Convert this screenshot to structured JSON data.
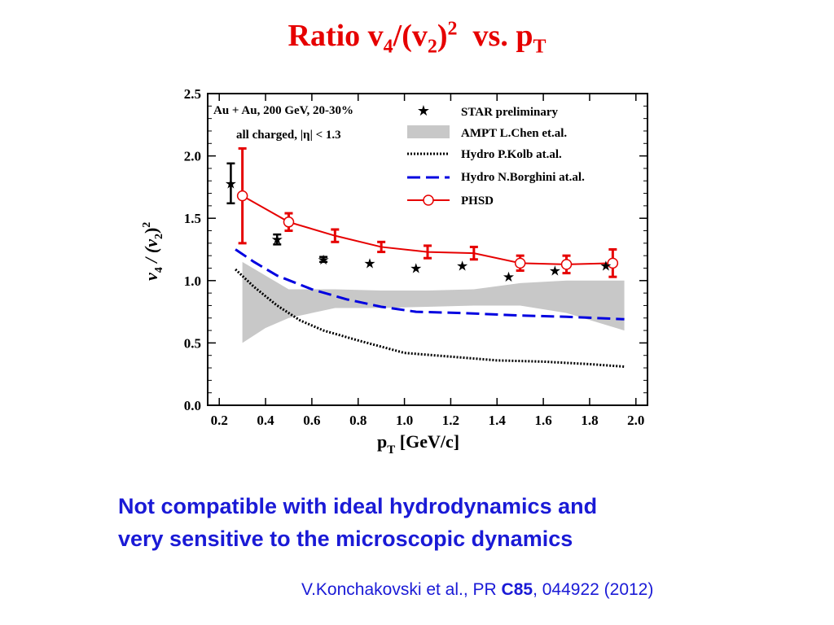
{
  "slide": {
    "title_main": "Ratio v",
    "title_sub1": "4",
    "title_mid": "/(v",
    "title_sub2": "2",
    "title_close": ")",
    "title_sup": "2",
    "title_vs": "  vs. p",
    "title_sub3": "T",
    "note_line1": "Not compatible with ideal hydrodynamics and",
    "note_line2": "very sensitive to the microscopic dynamics",
    "cite_pre": "V.Konchakovski et al., PR ",
    "cite_bold": "C85",
    "cite_post": ", 044922 (2012)"
  },
  "colors": {
    "title": "#e60000",
    "note": "#1a1ad6",
    "phsd": "#e60000",
    "borghini": "#0000e0",
    "ampt_band": "#c8c8c8",
    "star": "#000000"
  },
  "chart_data": {
    "type": "line",
    "xlabel": "p",
    "xlabel_sub": "T",
    "xlabel_unit": " [GeV/c]",
    "ylabel": "v",
    "ylabel_sub": "4",
    "ylabel_mid": " / (v",
    "ylabel_sub2": "2",
    "ylabel_close": ")",
    "ylabel_sup": "2",
    "xlim": [
      0.15,
      2.05
    ],
    "ylim": [
      0.0,
      2.5
    ],
    "xticks": [
      0.2,
      0.4,
      0.6,
      0.8,
      1.0,
      1.2,
      1.4,
      1.6,
      1.8,
      2.0
    ],
    "xtick_labels": [
      "0.2",
      "0.4",
      "0.6",
      "0.8",
      "1.0",
      "1.2",
      "1.4",
      "1.6",
      "1.8",
      "2.0"
    ],
    "yticks": [
      0.0,
      0.5,
      1.0,
      1.5,
      2.0,
      2.5
    ],
    "ytick_labels": [
      "0.0",
      "0.5",
      "1.0",
      "1.5",
      "2.0",
      "2.5"
    ],
    "annotation_line1": "Au + Au, 200 GeV, 20-30%",
    "annotation_line2": "all charged, |η| < 1.3",
    "legend_position": "top-right",
    "series": [
      {
        "name": "STAR preliminary",
        "kind": "stars",
        "points": [
          {
            "x": 0.25,
            "y": 1.78,
            "err": 0.16
          },
          {
            "x": 0.45,
            "y": 1.33,
            "err": 0.04
          },
          {
            "x": 0.65,
            "y": 1.17,
            "err": 0.02
          },
          {
            "x": 0.85,
            "y": 1.14,
            "err": 0
          },
          {
            "x": 1.05,
            "y": 1.1,
            "err": 0
          },
          {
            "x": 1.25,
            "y": 1.12,
            "err": 0
          },
          {
            "x": 1.45,
            "y": 1.03,
            "err": 0
          },
          {
            "x": 1.65,
            "y": 1.08,
            "err": 0
          },
          {
            "x": 1.87,
            "y": 1.12,
            "err": 0
          }
        ]
      },
      {
        "name": "AMPT L.Chen et.al.",
        "kind": "band",
        "upper": [
          [
            0.3,
            1.15
          ],
          [
            0.5,
            0.93
          ],
          [
            0.7,
            0.93
          ],
          [
            0.9,
            0.92
          ],
          [
            1.1,
            0.92
          ],
          [
            1.3,
            0.93
          ],
          [
            1.5,
            0.98
          ],
          [
            1.7,
            1.0
          ],
          [
            1.9,
            1.0
          ],
          [
            1.95,
            1.0
          ]
        ],
        "lower": [
          [
            0.3,
            0.5
          ],
          [
            0.4,
            0.62
          ],
          [
            0.5,
            0.7
          ],
          [
            0.7,
            0.78
          ],
          [
            0.9,
            0.78
          ],
          [
            1.1,
            0.79
          ],
          [
            1.3,
            0.8
          ],
          [
            1.5,
            0.8
          ],
          [
            1.7,
            0.74
          ],
          [
            1.95,
            0.6
          ]
        ]
      },
      {
        "name": "Hydro P.Kolb at.al.",
        "kind": "dotted",
        "points": [
          [
            0.27,
            1.09
          ],
          [
            0.35,
            0.95
          ],
          [
            0.45,
            0.8
          ],
          [
            0.55,
            0.68
          ],
          [
            0.65,
            0.6
          ],
          [
            0.8,
            0.52
          ],
          [
            1.0,
            0.42
          ],
          [
            1.2,
            0.39
          ],
          [
            1.4,
            0.36
          ],
          [
            1.6,
            0.35
          ],
          [
            1.8,
            0.33
          ],
          [
            1.95,
            0.31
          ]
        ]
      },
      {
        "name": "Hydro N.Borghini at.al.",
        "kind": "dashed",
        "points": [
          [
            0.27,
            1.25
          ],
          [
            0.35,
            1.15
          ],
          [
            0.45,
            1.04
          ],
          [
            0.6,
            0.93
          ],
          [
            0.75,
            0.85
          ],
          [
            0.9,
            0.79
          ],
          [
            1.05,
            0.75
          ],
          [
            1.25,
            0.74
          ],
          [
            1.5,
            0.72
          ],
          [
            1.7,
            0.71
          ],
          [
            1.95,
            0.69
          ]
        ]
      },
      {
        "name": "PHSD",
        "kind": "line-circles",
        "points": [
          {
            "x": 0.3,
            "y": 1.68,
            "err": 0.38,
            "circle": true
          },
          {
            "x": 0.5,
            "y": 1.47,
            "err": 0.07,
            "circle": true
          },
          {
            "x": 0.7,
            "y": 1.36,
            "err": 0.05,
            "circle": false
          },
          {
            "x": 0.9,
            "y": 1.27,
            "err": 0.04,
            "circle": false
          },
          {
            "x": 1.1,
            "y": 1.23,
            "err": 0.05,
            "circle": false
          },
          {
            "x": 1.3,
            "y": 1.22,
            "err": 0.05,
            "circle": false
          },
          {
            "x": 1.5,
            "y": 1.14,
            "err": 0.06,
            "circle": true
          },
          {
            "x": 1.7,
            "y": 1.13,
            "err": 0.07,
            "circle": true
          },
          {
            "x": 1.9,
            "y": 1.14,
            "err": 0.11,
            "circle": true
          }
        ]
      }
    ]
  }
}
